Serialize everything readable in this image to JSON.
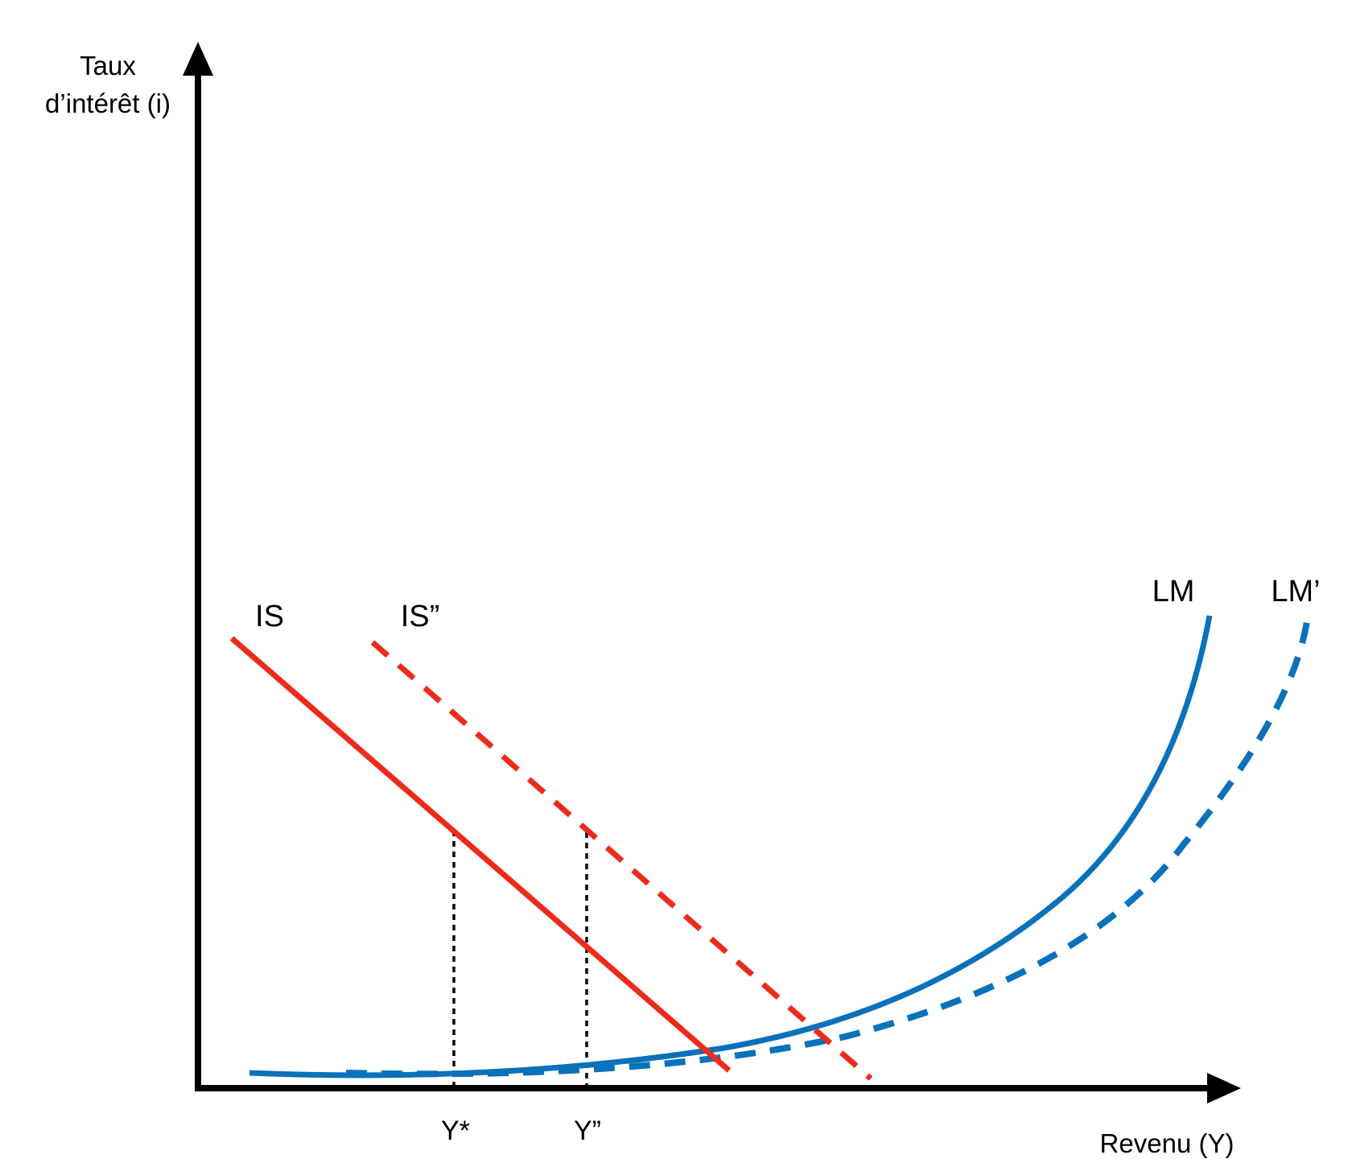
{
  "diagram": {
    "y_axis_label_line1": "Taux",
    "y_axis_label_line2": "d’intérêt (i)",
    "x_axis_label": "Revenu (Y)",
    "curves": {
      "is": {
        "label": "IS",
        "color": "#EE2A1B",
        "style": "solid"
      },
      "is_shifted": {
        "label": "IS”",
        "color": "#EE2A1B",
        "style": "dashed"
      },
      "lm": {
        "label": "LM",
        "color": "#0A71BB",
        "style": "solid"
      },
      "lm_shifted": {
        "label": "LM’",
        "color": "#0A71BB",
        "style": "dashed"
      }
    },
    "markers": {
      "y_star": "Y*",
      "y_double": "Y”"
    },
    "axis_color": "#000000"
  }
}
